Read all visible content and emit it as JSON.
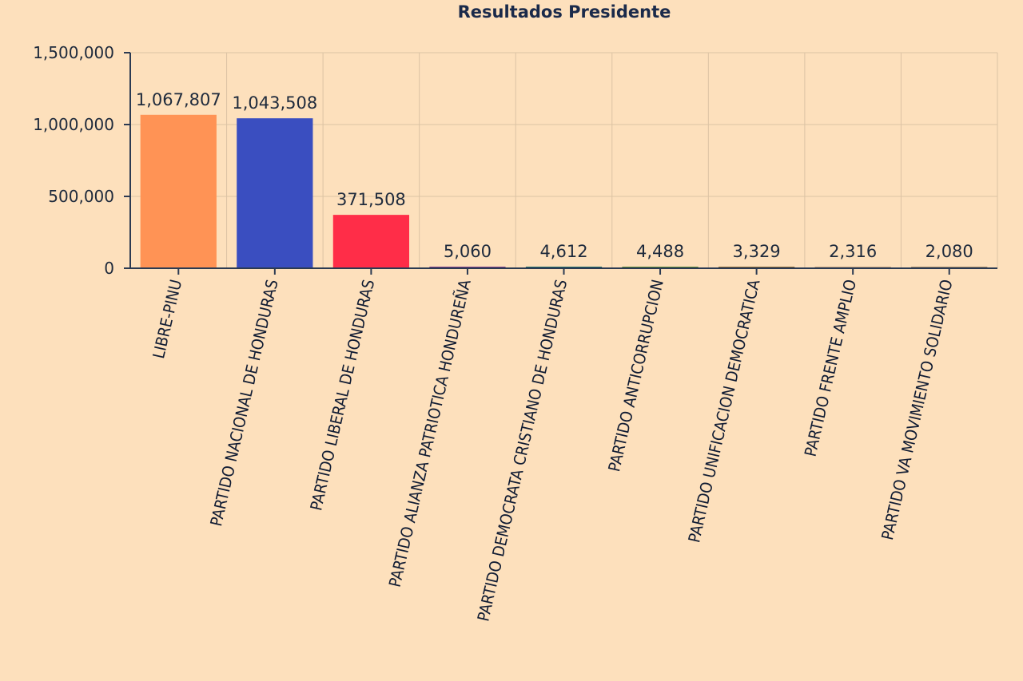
{
  "chart_data": {
    "type": "bar",
    "title": "Resultados Presidente",
    "xlabel": "",
    "ylabel": "",
    "ylim": [
      0,
      1500000
    ],
    "yticks": [
      0,
      500000,
      1000000,
      1500000
    ],
    "ytick_labels": [
      "0",
      "500,000",
      "1,000,000",
      "1,500,000"
    ],
    "grid": true,
    "legend": "none",
    "categories": [
      "LIBRE-PINU",
      "PARTIDO NACIONAL DE HONDURAS",
      "PARTIDO LIBERAL DE HONDURAS",
      "PARTIDO ALIANZA PATRIOTICA HONDUREÑA",
      "PARTIDO DEMOCRATA CRISTIANO DE HONDURAS",
      "PARTIDO ANTICORRUPCION",
      "PARTIDO UNIFICACION DEMOCRATICA",
      "PARTIDO FRENTE AMPLIO",
      "PARTIDO VA MOVIMIENTO SOLIDARIO"
    ],
    "values": [
      1067807,
      1043508,
      371508,
      5060,
      4612,
      4488,
      3329,
      2316,
      2080
    ],
    "value_labels": [
      "1,067,807",
      "1,043,508",
      "371,508",
      "5,060",
      "4,612",
      "4,488",
      "3,329",
      "2,316",
      "2,080"
    ],
    "colors": [
      "#ff9355",
      "#3a4ec0",
      "#ff2d48",
      "#7a3c8a",
      "#1f6b6b",
      "#5a8a3a",
      "#8a6b3a",
      "#c0a080",
      "#a08a6a"
    ]
  }
}
